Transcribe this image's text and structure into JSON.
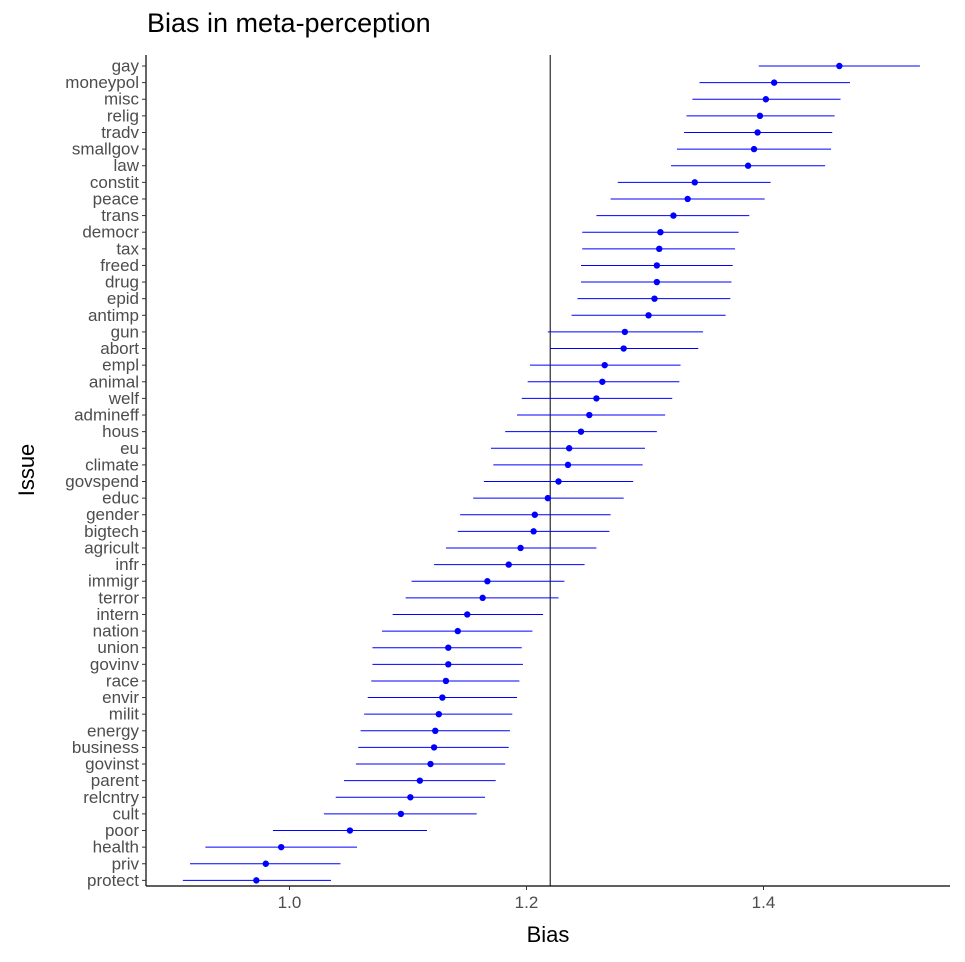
{
  "chart_data": {
    "type": "scatter",
    "subtype": "point-range",
    "title": "Bias in meta-perception",
    "xlabel": "Bias",
    "ylabel": "Issue",
    "xlim": [
      0.88,
      1.56
    ],
    "xticks": [
      1.0,
      1.2,
      1.4
    ],
    "xtick_labels": [
      "1.0",
      "1.2",
      "1.4"
    ],
    "reference_line_x": 1.22,
    "grid": false,
    "legend": "none",
    "point_color": "#0000ff",
    "line_color": "#000000",
    "categories": [
      "gay",
      "moneypol",
      "misc",
      "relig",
      "tradv",
      "smallgov",
      "law",
      "constit",
      "peace",
      "trans",
      "democr",
      "tax",
      "freed",
      "drug",
      "epid",
      "antimp",
      "gun",
      "abort",
      "empl",
      "animal",
      "welf",
      "admineff",
      "hous",
      "eu",
      "climate",
      "govspend",
      "educ",
      "gender",
      "bigtech",
      "agricult",
      "infr",
      "immigr",
      "terror",
      "intern",
      "nation",
      "union",
      "govinv",
      "race",
      "envir",
      "milit",
      "energy",
      "business",
      "govinst",
      "parent",
      "relcntry",
      "cult",
      "poor",
      "health",
      "priv",
      "protect"
    ],
    "values": [
      1.464,
      1.409,
      1.402,
      1.397,
      1.395,
      1.392,
      1.387,
      1.342,
      1.336,
      1.324,
      1.313,
      1.312,
      1.31,
      1.31,
      1.308,
      1.303,
      1.283,
      1.282,
      1.266,
      1.264,
      1.259,
      1.253,
      1.246,
      1.236,
      1.235,
      1.227,
      1.218,
      1.207,
      1.206,
      1.195,
      1.185,
      1.167,
      1.163,
      1.15,
      1.142,
      1.134,
      1.134,
      1.132,
      1.129,
      1.126,
      1.123,
      1.122,
      1.119,
      1.11,
      1.102,
      1.094,
      1.051,
      0.993,
      0.98,
      0.972
    ],
    "lower": [
      1.396,
      1.346,
      1.34,
      1.335,
      1.333,
      1.327,
      1.322,
      1.277,
      1.271,
      1.259,
      1.247,
      1.247,
      1.246,
      1.246,
      1.243,
      1.238,
      1.218,
      1.22,
      1.203,
      1.201,
      1.196,
      1.192,
      1.182,
      1.17,
      1.172,
      1.164,
      1.155,
      1.144,
      1.142,
      1.132,
      1.122,
      1.103,
      1.098,
      1.087,
      1.078,
      1.07,
      1.07,
      1.069,
      1.066,
      1.063,
      1.06,
      1.058,
      1.056,
      1.046,
      1.039,
      1.029,
      0.986,
      0.929,
      0.916,
      0.91
    ],
    "upper": [
      1.532,
      1.473,
      1.465,
      1.46,
      1.458,
      1.457,
      1.452,
      1.406,
      1.401,
      1.388,
      1.379,
      1.376,
      1.374,
      1.373,
      1.372,
      1.368,
      1.349,
      1.345,
      1.33,
      1.329,
      1.323,
      1.317,
      1.31,
      1.3,
      1.298,
      1.29,
      1.282,
      1.271,
      1.27,
      1.259,
      1.249,
      1.232,
      1.227,
      1.214,
      1.205,
      1.196,
      1.197,
      1.194,
      1.192,
      1.188,
      1.186,
      1.185,
      1.182,
      1.174,
      1.165,
      1.158,
      1.116,
      1.057,
      1.043,
      1.035
    ]
  }
}
